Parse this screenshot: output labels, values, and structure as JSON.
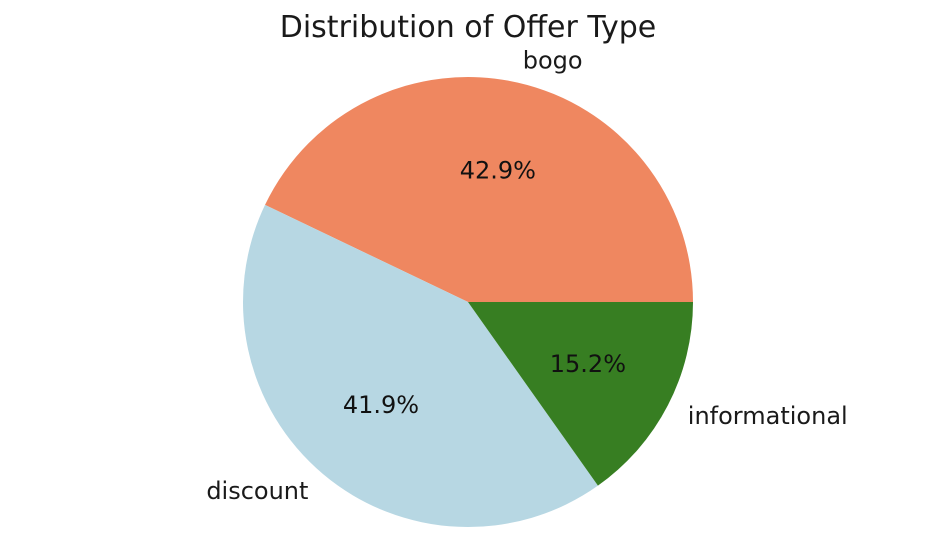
{
  "chart_data": {
    "type": "pie",
    "title": "Distribution of Offer Type",
    "start_angle_deg": 0,
    "direction": "counterclockwise",
    "slices": [
      {
        "label": "bogo",
        "value": 42.9,
        "pct_text": "42.9%",
        "color": "#ef8760"
      },
      {
        "label": "discount",
        "value": 41.9,
        "pct_text": "41.9%",
        "color": "#b7d7e3"
      },
      {
        "label": "informational",
        "value": 15.2,
        "pct_text": "15.2%",
        "color": "#377e22"
      }
    ]
  }
}
